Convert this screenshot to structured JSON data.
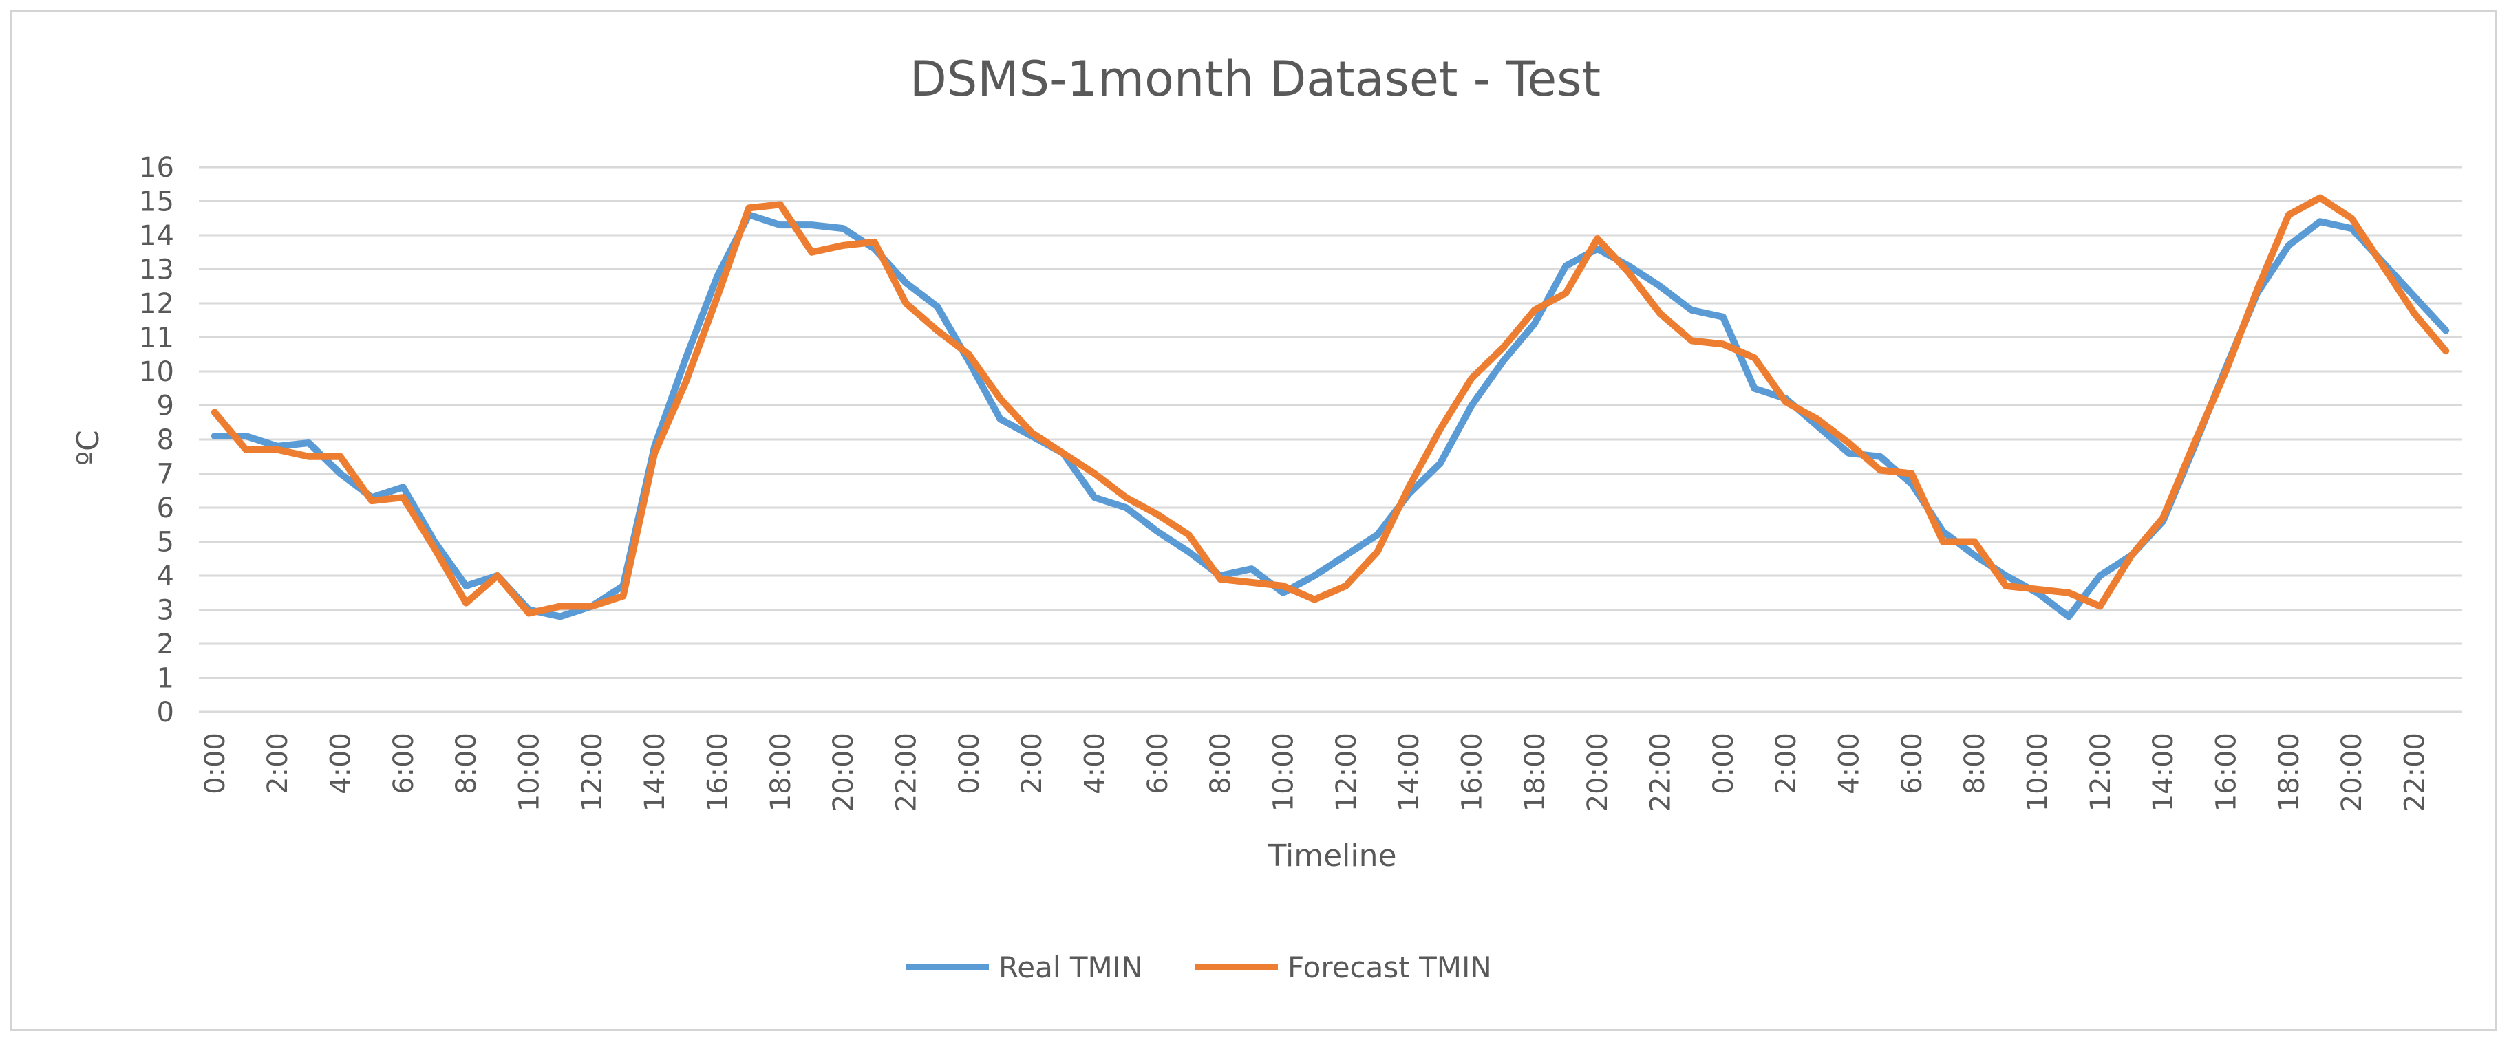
{
  "chart_data": {
    "type": "line",
    "title": "DSMS-1month Dataset - Test",
    "xlabel": "Timeline",
    "ylabel": "ºC",
    "ylim": [
      0,
      16
    ],
    "y_ticks": [
      0,
      1,
      2,
      3,
      4,
      5,
      6,
      7,
      8,
      9,
      10,
      11,
      12,
      13,
      14,
      15,
      16
    ],
    "grid": true,
    "legend_position": "bottom",
    "x": [
      "0:00",
      "1:00",
      "2:00",
      "3:00",
      "4:00",
      "5:00",
      "6:00",
      "7:00",
      "8:00",
      "9:00",
      "10:00",
      "11:00",
      "12:00",
      "13:00",
      "14:00",
      "15:00",
      "16:00",
      "17:00",
      "18:00",
      "19:00",
      "20:00",
      "21:00",
      "22:00",
      "23:00",
      "0:00",
      "1:00",
      "2:00",
      "3:00",
      "4:00",
      "5:00",
      "6:00",
      "7:00",
      "8:00",
      "9:00",
      "10:00",
      "11:00",
      "12:00",
      "13:00",
      "14:00",
      "15:00",
      "16:00",
      "17:00",
      "18:00",
      "19:00",
      "20:00",
      "21:00",
      "22:00",
      "23:00",
      "0:00",
      "1:00",
      "2:00",
      "3:00",
      "4:00",
      "5:00",
      "6:00",
      "7:00",
      "8:00",
      "9:00",
      "10:00",
      "11:00",
      "12:00",
      "13:00",
      "14:00",
      "15:00",
      "16:00",
      "17:00",
      "18:00",
      "19:00",
      "20:00",
      "21:00",
      "22:00",
      "23:00"
    ],
    "x_tick_labels": [
      "0:00",
      "2:00",
      "4:00",
      "6:00",
      "8:00",
      "10:00",
      "12:00",
      "14:00",
      "16:00",
      "18:00",
      "20:00",
      "22:00",
      "0:00",
      "2:00",
      "4:00",
      "6:00",
      "8:00",
      "10:00",
      "12:00",
      "14:00",
      "16:00",
      "18:00",
      "20:00",
      "22:00",
      "0:00",
      "2:00",
      "4:00",
      "6:00",
      "8:00",
      "10:00",
      "12:00",
      "14:00",
      "16:00",
      "18:00",
      "20:00",
      "22:00"
    ],
    "series": [
      {
        "name": "Real TMIN",
        "color": "#5b9bd5",
        "values": [
          8.1,
          8.1,
          7.8,
          7.9,
          7.0,
          6.3,
          6.6,
          5.0,
          3.7,
          4.0,
          3.0,
          2.8,
          3.1,
          3.7,
          7.8,
          10.4,
          12.8,
          14.6,
          14.3,
          14.3,
          14.2,
          13.6,
          12.6,
          11.9,
          10.3,
          8.6,
          8.1,
          7.6,
          6.3,
          6.0,
          5.3,
          4.7,
          4.0,
          4.2,
          3.5,
          4.0,
          4.6,
          5.2,
          6.4,
          7.3,
          9.0,
          10.3,
          11.4,
          13.1,
          13.6,
          13.1,
          12.5,
          11.8,
          11.6,
          9.5,
          9.2,
          8.4,
          7.6,
          7.5,
          6.7,
          5.3,
          4.6,
          4.0,
          3.5,
          2.8,
          4.0,
          4.6,
          5.6,
          7.8,
          10.1,
          12.3,
          13.7,
          14.4,
          14.2,
          13.2,
          12.2,
          11.2
        ]
      },
      {
        "name": "Forecast TMIN",
        "color": "#ed7d31",
        "values": [
          8.8,
          7.7,
          7.7,
          7.5,
          7.5,
          6.2,
          6.3,
          4.8,
          3.2,
          4.0,
          2.9,
          3.1,
          3.1,
          3.4,
          7.6,
          9.7,
          12.2,
          14.8,
          14.9,
          13.5,
          13.7,
          13.8,
          12.0,
          11.2,
          10.5,
          9.2,
          8.2,
          7.6,
          7.0,
          6.3,
          5.8,
          5.2,
          3.9,
          3.8,
          3.7,
          3.3,
          3.7,
          4.7,
          6.6,
          8.3,
          9.8,
          10.7,
          11.8,
          12.3,
          13.9,
          12.9,
          11.7,
          10.9,
          10.8,
          10.4,
          9.1,
          8.6,
          7.9,
          7.1,
          7.0,
          5.0,
          5.0,
          3.7,
          3.6,
          3.5,
          3.1,
          4.6,
          5.7,
          7.9,
          10.0,
          12.4,
          14.6,
          15.1,
          14.5,
          13.1,
          11.7,
          10.6
        ]
      }
    ]
  }
}
